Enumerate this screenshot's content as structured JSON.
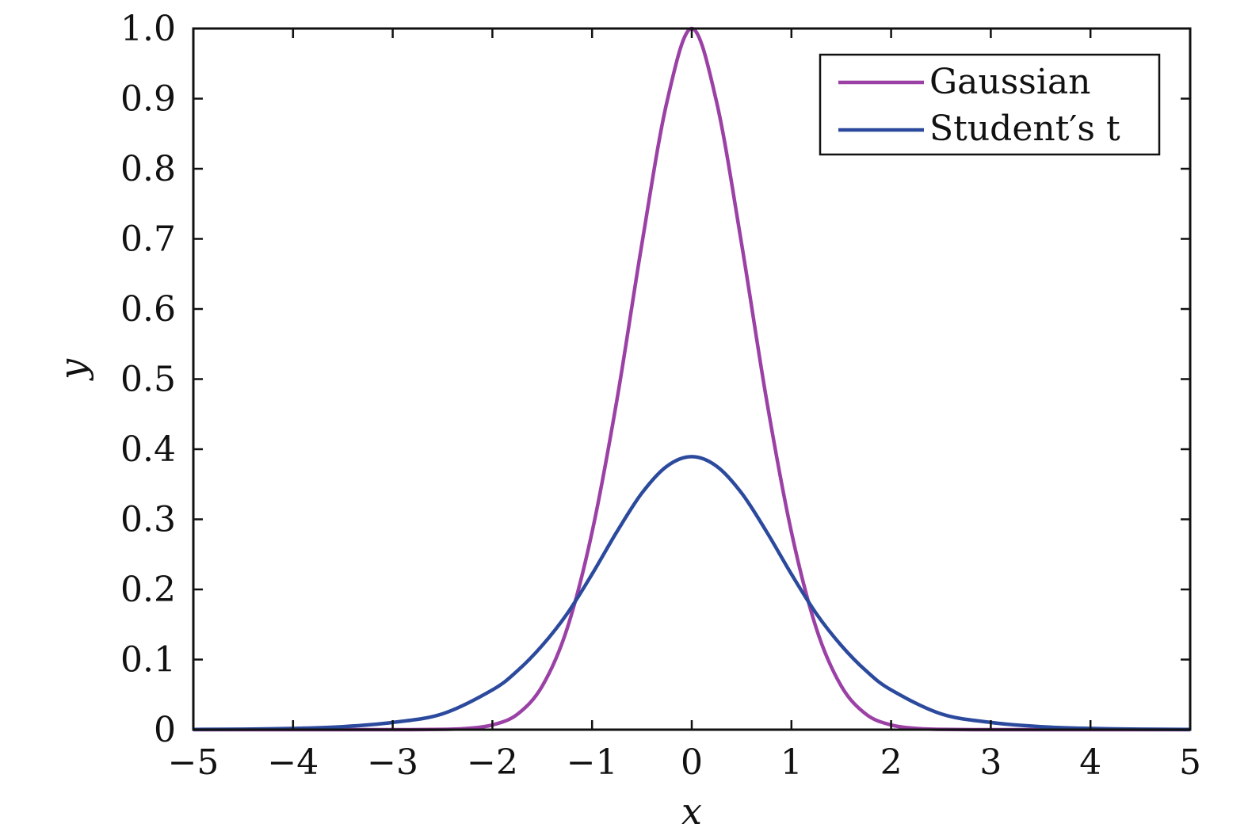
{
  "chart_data": {
    "type": "line",
    "xlabel": "x",
    "ylabel": "y",
    "xlim": [
      -5,
      5
    ],
    "ylim": [
      0,
      1
    ],
    "xticks": [
      -5,
      -4,
      -3,
      -2,
      -1,
      0,
      1,
      2,
      3,
      4,
      5
    ],
    "xtick_labels": [
      "−5",
      "−4",
      "−3",
      "−2",
      "−1",
      "0",
      "1",
      "2",
      "3",
      "4",
      "5"
    ],
    "yticks": [
      0,
      0.1,
      0.2,
      0.3,
      0.4,
      0.5,
      0.6,
      0.7,
      0.8,
      0.9,
      1.0
    ],
    "ytick_labels": [
      "0",
      "0.1",
      "0.2",
      "0.3",
      "0.4",
      "0.5",
      "0.6",
      "0.7",
      "0.8",
      "0.9",
      "1.0"
    ],
    "grid": false,
    "legend_position": "top-right",
    "series": [
      {
        "name": "Gaussian",
        "color": "#9b41a6",
        "x": [
          -5,
          -4.5,
          -4,
          -3.5,
          -3,
          -2.5,
          -2.25,
          -2,
          -1.75,
          -1.5,
          -1.25,
          -1,
          -0.75,
          -0.5,
          -0.25,
          0,
          0.25,
          0.5,
          0.75,
          1,
          1.25,
          1.5,
          1.75,
          2,
          2.25,
          2.5,
          3,
          3.5,
          4,
          4.5,
          5
        ],
        "y": [
          0,
          0,
          0,
          0,
          0,
          0.0004,
          0.0018,
          0.0067,
          0.0219,
          0.0622,
          0.1443,
          0.2818,
          0.4708,
          0.693,
          0.8947,
          1.0,
          0.8947,
          0.693,
          0.4708,
          0.2818,
          0.1443,
          0.0622,
          0.0219,
          0.0067,
          0.0018,
          0.0004,
          0,
          0,
          0,
          0,
          0
        ]
      },
      {
        "name": "Student′s t",
        "color": "#2c4a9d",
        "x": [
          -5,
          -4.5,
          -4,
          -3.5,
          -3,
          -2.5,
          -2,
          -1.75,
          -1.5,
          -1.25,
          -1,
          -0.75,
          -0.5,
          -0.25,
          0,
          0.25,
          0.5,
          0.75,
          1,
          1.25,
          1.5,
          1.75,
          2,
          2.5,
          3,
          3.5,
          4,
          4.5,
          5
        ],
        "y": [
          0.0003,
          0.0007,
          0.0018,
          0.0043,
          0.0103,
          0.0226,
          0.0567,
          0.0838,
          0.1201,
          0.1654,
          0.2218,
          0.2825,
          0.3375,
          0.3757,
          0.3894,
          0.3757,
          0.3375,
          0.2825,
          0.2218,
          0.1654,
          0.1201,
          0.0838,
          0.0567,
          0.0226,
          0.0103,
          0.0043,
          0.0018,
          0.0007,
          0.0003
        ]
      }
    ]
  }
}
